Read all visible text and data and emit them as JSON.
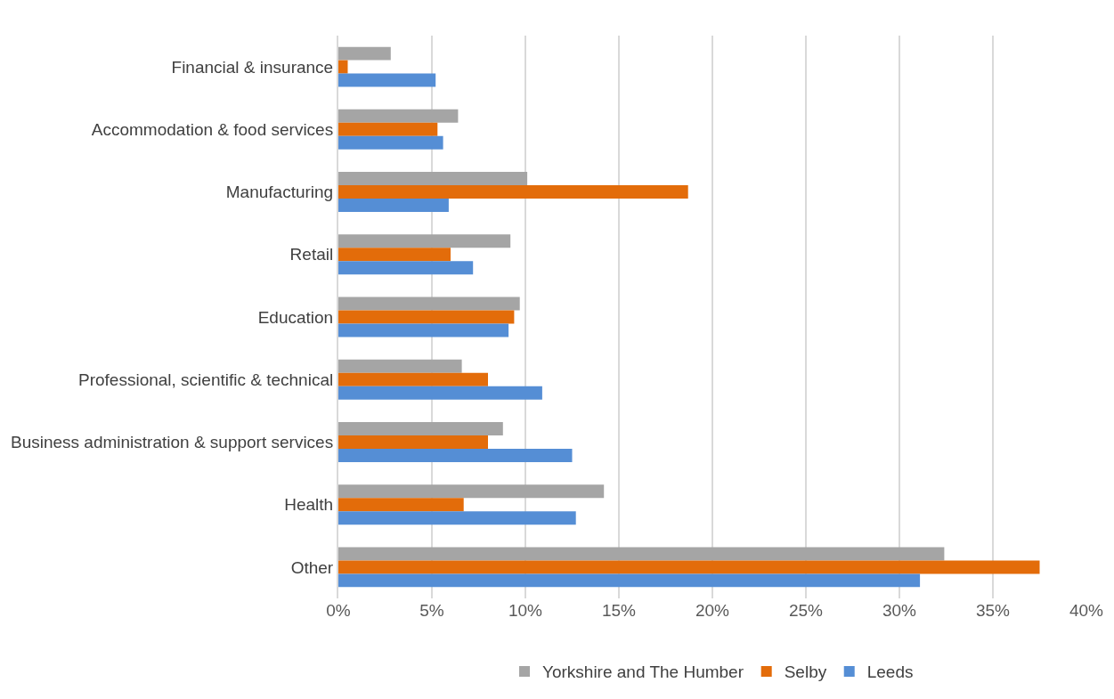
{
  "chart_data": {
    "type": "bar",
    "orientation": "horizontal",
    "categories": [
      "Financial & insurance",
      "Accommodation & food services",
      "Manufacturing",
      "Retail",
      "Education",
      "Professional, scientific & technical",
      "Business administration & support services",
      "Health",
      "Other"
    ],
    "series": [
      {
        "name": "Yorkshire and The Humber",
        "color": "#a5a5a5",
        "values": [
          2.8,
          6.4,
          10.1,
          9.2,
          9.7,
          6.6,
          8.8,
          14.2,
          32.4
        ]
      },
      {
        "name": "Selby",
        "color": "#e36c0a",
        "values": [
          0.5,
          5.3,
          18.7,
          6.0,
          9.4,
          8.0,
          8.0,
          6.7,
          37.5
        ]
      },
      {
        "name": "Leeds",
        "color": "#558ed5",
        "values": [
          5.2,
          5.6,
          5.9,
          7.2,
          9.1,
          10.9,
          12.5,
          12.7,
          31.1
        ]
      }
    ],
    "xlim": [
      0,
      40
    ],
    "xticks": [
      {
        "value": 0,
        "label": "0%"
      },
      {
        "value": 5,
        "label": "5%"
      },
      {
        "value": 10,
        "label": "10%"
      },
      {
        "value": 15,
        "label": "15%"
      },
      {
        "value": 20,
        "label": "20%"
      },
      {
        "value": 25,
        "label": "25%"
      },
      {
        "value": 30,
        "label": "30%"
      },
      {
        "value": 35,
        "label": "35%"
      },
      {
        "value": 40,
        "label": "40%"
      }
    ],
    "grid": "x",
    "legend": "bottom"
  }
}
